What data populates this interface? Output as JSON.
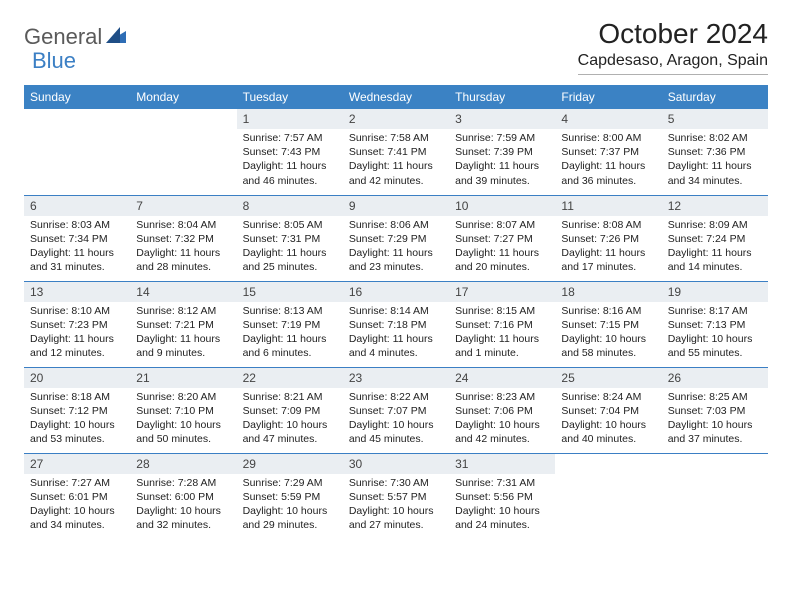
{
  "brand": {
    "part1": "General",
    "part2": "Blue"
  },
  "title": "October 2024",
  "location": "Capdesaso, Aragon, Spain",
  "colors": {
    "header_bg": "#3b82c4",
    "header_text": "#ffffff",
    "daynum_bg": "#eaeef2",
    "border": "#3b7fc4",
    "logo_gray": "#5a5a5a",
    "logo_blue": "#3b7fc4"
  },
  "weekdays": [
    "Sunday",
    "Monday",
    "Tuesday",
    "Wednesday",
    "Thursday",
    "Friday",
    "Saturday"
  ],
  "weeks": [
    [
      null,
      null,
      {
        "n": "1",
        "sr": "7:57 AM",
        "ss": "7:43 PM",
        "dl": "11 hours and 46 minutes."
      },
      {
        "n": "2",
        "sr": "7:58 AM",
        "ss": "7:41 PM",
        "dl": "11 hours and 42 minutes."
      },
      {
        "n": "3",
        "sr": "7:59 AM",
        "ss": "7:39 PM",
        "dl": "11 hours and 39 minutes."
      },
      {
        "n": "4",
        "sr": "8:00 AM",
        "ss": "7:37 PM",
        "dl": "11 hours and 36 minutes."
      },
      {
        "n": "5",
        "sr": "8:02 AM",
        "ss": "7:36 PM",
        "dl": "11 hours and 34 minutes."
      }
    ],
    [
      {
        "n": "6",
        "sr": "8:03 AM",
        "ss": "7:34 PM",
        "dl": "11 hours and 31 minutes."
      },
      {
        "n": "7",
        "sr": "8:04 AM",
        "ss": "7:32 PM",
        "dl": "11 hours and 28 minutes."
      },
      {
        "n": "8",
        "sr": "8:05 AM",
        "ss": "7:31 PM",
        "dl": "11 hours and 25 minutes."
      },
      {
        "n": "9",
        "sr": "8:06 AM",
        "ss": "7:29 PM",
        "dl": "11 hours and 23 minutes."
      },
      {
        "n": "10",
        "sr": "8:07 AM",
        "ss": "7:27 PM",
        "dl": "11 hours and 20 minutes."
      },
      {
        "n": "11",
        "sr": "8:08 AM",
        "ss": "7:26 PM",
        "dl": "11 hours and 17 minutes."
      },
      {
        "n": "12",
        "sr": "8:09 AM",
        "ss": "7:24 PM",
        "dl": "11 hours and 14 minutes."
      }
    ],
    [
      {
        "n": "13",
        "sr": "8:10 AM",
        "ss": "7:23 PM",
        "dl": "11 hours and 12 minutes."
      },
      {
        "n": "14",
        "sr": "8:12 AM",
        "ss": "7:21 PM",
        "dl": "11 hours and 9 minutes."
      },
      {
        "n": "15",
        "sr": "8:13 AM",
        "ss": "7:19 PM",
        "dl": "11 hours and 6 minutes."
      },
      {
        "n": "16",
        "sr": "8:14 AM",
        "ss": "7:18 PM",
        "dl": "11 hours and 4 minutes."
      },
      {
        "n": "17",
        "sr": "8:15 AM",
        "ss": "7:16 PM",
        "dl": "11 hours and 1 minute."
      },
      {
        "n": "18",
        "sr": "8:16 AM",
        "ss": "7:15 PM",
        "dl": "10 hours and 58 minutes."
      },
      {
        "n": "19",
        "sr": "8:17 AM",
        "ss": "7:13 PM",
        "dl": "10 hours and 55 minutes."
      }
    ],
    [
      {
        "n": "20",
        "sr": "8:18 AM",
        "ss": "7:12 PM",
        "dl": "10 hours and 53 minutes."
      },
      {
        "n": "21",
        "sr": "8:20 AM",
        "ss": "7:10 PM",
        "dl": "10 hours and 50 minutes."
      },
      {
        "n": "22",
        "sr": "8:21 AM",
        "ss": "7:09 PM",
        "dl": "10 hours and 47 minutes."
      },
      {
        "n": "23",
        "sr": "8:22 AM",
        "ss": "7:07 PM",
        "dl": "10 hours and 45 minutes."
      },
      {
        "n": "24",
        "sr": "8:23 AM",
        "ss": "7:06 PM",
        "dl": "10 hours and 42 minutes."
      },
      {
        "n": "25",
        "sr": "8:24 AM",
        "ss": "7:04 PM",
        "dl": "10 hours and 40 minutes."
      },
      {
        "n": "26",
        "sr": "8:25 AM",
        "ss": "7:03 PM",
        "dl": "10 hours and 37 minutes."
      }
    ],
    [
      {
        "n": "27",
        "sr": "7:27 AM",
        "ss": "6:01 PM",
        "dl": "10 hours and 34 minutes."
      },
      {
        "n": "28",
        "sr": "7:28 AM",
        "ss": "6:00 PM",
        "dl": "10 hours and 32 minutes."
      },
      {
        "n": "29",
        "sr": "7:29 AM",
        "ss": "5:59 PM",
        "dl": "10 hours and 29 minutes."
      },
      {
        "n": "30",
        "sr": "7:30 AM",
        "ss": "5:57 PM",
        "dl": "10 hours and 27 minutes."
      },
      {
        "n": "31",
        "sr": "7:31 AM",
        "ss": "5:56 PM",
        "dl": "10 hours and 24 minutes."
      },
      null,
      null
    ]
  ],
  "labels": {
    "sunrise": "Sunrise:",
    "sunset": "Sunset:",
    "daylight": "Daylight:"
  }
}
